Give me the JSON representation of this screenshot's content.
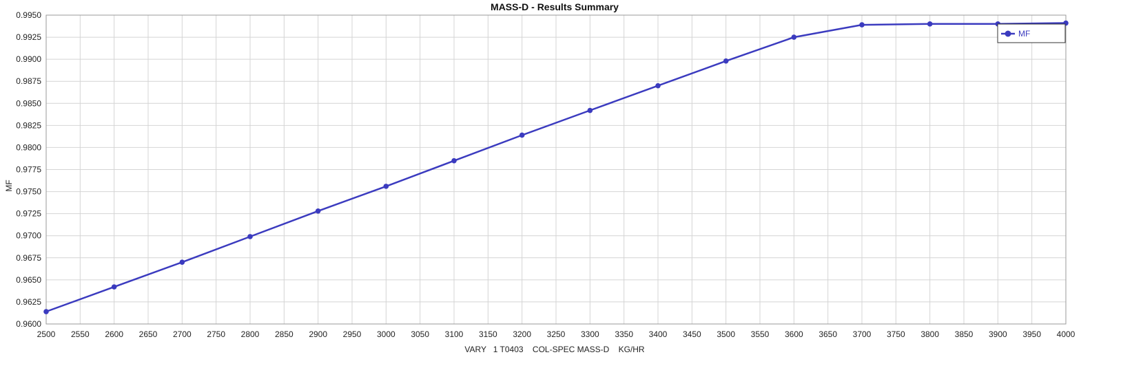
{
  "chart_data": {
    "type": "line",
    "title": "MASS-D - Results Summary",
    "xlabel": "VARY   1 T0403    COL-SPEC MASS-D    KG/HR",
    "ylabel": "MF",
    "xlim": [
      2500,
      4000
    ],
    "ylim": [
      0.96,
      0.995
    ],
    "x_ticks": [
      2500,
      2550,
      2600,
      2650,
      2700,
      2750,
      2800,
      2850,
      2900,
      2950,
      3000,
      3050,
      3100,
      3150,
      3200,
      3250,
      3300,
      3350,
      3400,
      3450,
      3500,
      3550,
      3600,
      3650,
      3700,
      3750,
      3800,
      3850,
      3900,
      3950,
      4000
    ],
    "y_ticks": [
      "0.9600",
      "0.9625",
      "0.9650",
      "0.9675",
      "0.9700",
      "0.9725",
      "0.9750",
      "0.9775",
      "0.9800",
      "0.9825",
      "0.9850",
      "0.9875",
      "0.9900",
      "0.9925",
      "0.9950"
    ],
    "grid": true,
    "legend_position": "top-right",
    "series": [
      {
        "name": "MF",
        "color": "#3b3bbf",
        "x": [
          2500,
          2600,
          2700,
          2800,
          2900,
          3000,
          3100,
          3200,
          3300,
          3400,
          3500,
          3600,
          3700,
          3800,
          3900,
          4000
        ],
        "y": [
          0.9614,
          0.9642,
          0.967,
          0.9699,
          0.9728,
          0.9756,
          0.9785,
          0.9814,
          0.9842,
          0.987,
          0.9898,
          0.9925,
          0.9939,
          0.994,
          0.994,
          0.9941
        ]
      }
    ]
  }
}
